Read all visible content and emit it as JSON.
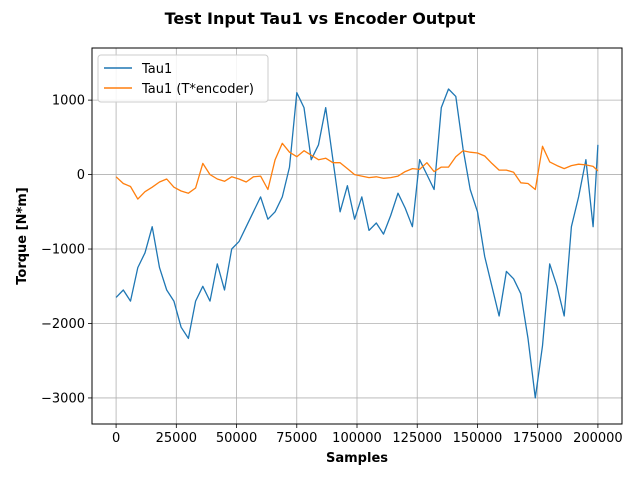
{
  "chart_data": {
    "type": "line",
    "title": "Test Input Tau1 vs Encoder Output",
    "xlabel": "Samples",
    "ylabel": "Torque [N*m]",
    "xlim": [
      -10000,
      210000
    ],
    "ylim": [
      -3350,
      1700
    ],
    "xticks": [
      0,
      25000,
      50000,
      75000,
      100000,
      125000,
      150000,
      175000,
      200000
    ],
    "yticks": [
      -3000,
      -2000,
      -1000,
      0,
      1000
    ],
    "grid": true,
    "legend_position": "top-left",
    "series": [
      {
        "name": "Tau1",
        "color": "#1f77b4",
        "x": [
          0,
          3000,
          6000,
          9000,
          12000,
          15000,
          18000,
          21000,
          24000,
          27000,
          30000,
          33000,
          36000,
          39000,
          42000,
          45000,
          48000,
          51000,
          54000,
          57000,
          60000,
          63000,
          66000,
          69000,
          72000,
          75000,
          78000,
          81000,
          84000,
          87000,
          90000,
          93000,
          96000,
          99000,
          102000,
          105000,
          108000,
          111000,
          114000,
          117000,
          120000,
          123000,
          126000,
          129000,
          132000,
          135000,
          138000,
          141000,
          144000,
          147000,
          150000,
          153000,
          156000,
          159000,
          162000,
          165000,
          168000,
          171000,
          174000,
          177000,
          180000,
          183000,
          186000,
          189000,
          192000,
          195000,
          198000,
          200000
        ],
        "y": [
          -1650,
          -1550,
          -1700,
          -1250,
          -1050,
          -700,
          -1250,
          -1550,
          -1700,
          -2050,
          -2200,
          -1700,
          -1500,
          -1700,
          -1200,
          -1550,
          -1000,
          -900,
          -700,
          -500,
          -300,
          -600,
          -500,
          -300,
          100,
          1100,
          900,
          200,
          400,
          900,
          200,
          -500,
          -150,
          -600,
          -300,
          -750,
          -650,
          -800,
          -550,
          -250,
          -450,
          -700,
          200,
          0,
          -200,
          900,
          1150,
          1050,
          350,
          -200,
          -500,
          -1100,
          -1500,
          -1900,
          -1300,
          -1400,
          -1600,
          -2200,
          -3000,
          -2300,
          -1200,
          -1500,
          -1900,
          -700,
          -300,
          200,
          -700,
          400
        ]
      },
      {
        "name": "Tau1 (T*encoder)",
        "color": "#ff7f0e",
        "x": [
          0,
          3000,
          6000,
          9000,
          12000,
          15000,
          18000,
          21000,
          24000,
          27000,
          30000,
          33000,
          36000,
          39000,
          42000,
          45000,
          48000,
          51000,
          54000,
          57000,
          60000,
          63000,
          66000,
          69000,
          72000,
          75000,
          78000,
          81000,
          84000,
          87000,
          90000,
          93000,
          96000,
          99000,
          102000,
          105000,
          108000,
          111000,
          114000,
          117000,
          120000,
          123000,
          126000,
          129000,
          132000,
          135000,
          138000,
          141000,
          144000,
          147000,
          150000,
          153000,
          156000,
          159000,
          162000,
          165000,
          168000,
          171000,
          174000,
          177000,
          180000,
          183000,
          186000,
          189000,
          192000,
          195000,
          198000,
          200000
        ],
        "y": [
          -30,
          -120,
          -160,
          -330,
          -230,
          -170,
          -100,
          -60,
          -170,
          -220,
          -250,
          -180,
          150,
          0,
          -60,
          -90,
          -30,
          -60,
          -100,
          -30,
          -20,
          -200,
          200,
          420,
          300,
          240,
          320,
          260,
          200,
          220,
          160,
          160,
          80,
          0,
          -20,
          -40,
          -30,
          -50,
          -40,
          -20,
          40,
          80,
          70,
          160,
          40,
          100,
          100,
          240,
          320,
          300,
          290,
          250,
          150,
          60,
          60,
          30,
          -110,
          -120,
          -200,
          380,
          170,
          120,
          80,
          120,
          140,
          130,
          110,
          50
        ]
      }
    ]
  }
}
